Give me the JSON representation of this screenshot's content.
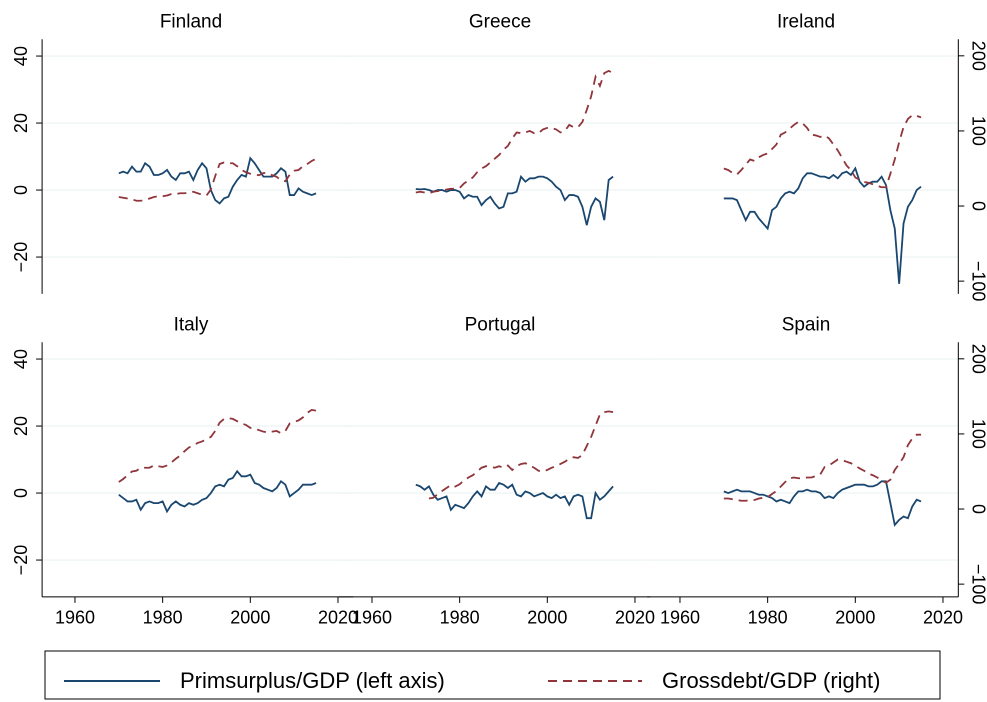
{
  "chart_data": [
    {
      "type": "line",
      "title": "Finland",
      "x": [
        1970,
        1971,
        1972,
        1973,
        1974,
        1975,
        1976,
        1977,
        1978,
        1979,
        1980,
        1981,
        1982,
        1983,
        1984,
        1985,
        1986,
        1987,
        1988,
        1989,
        1990,
        1991,
        1992,
        1993,
        1994,
        1995,
        1996,
        1997,
        1998,
        1999,
        2000,
        2001,
        2002,
        2003,
        2004,
        2005,
        2006,
        2007,
        2008,
        2009,
        2010,
        2011,
        2012,
        2013,
        2014,
        2015
      ],
      "xlim": [
        1952.5,
        2023.5
      ],
      "ylim": [
        -31,
        45
      ],
      "y2lim": [
        -117,
        222
      ],
      "yticks": [
        {
          "value": -20,
          "label": "−20"
        },
        0,
        20,
        40
      ],
      "grid": true,
      "series": [
        {
          "name": "Primsurplus/GDP (left axis)",
          "color": "#1a476f",
          "axis": "y",
          "dash": "solid",
          "values": [
            5,
            5.5,
            5,
            7,
            5.5,
            5.5,
            8,
            7,
            4.5,
            4.5,
            5,
            6,
            4,
            3,
            5,
            5,
            5.5,
            3,
            6,
            8,
            6.5,
            0,
            -3,
            -4,
            -2.5,
            -2,
            1,
            3,
            4.5,
            4,
            9.5,
            8,
            6,
            4,
            4,
            4,
            5,
            6.5,
            5.5,
            -1.5,
            -1.5,
            0.5,
            -0.5,
            -1,
            -1.5,
            -1
          ]
        },
        {
          "name": "Grossdebt/GDP (right)",
          "color": "#90353b",
          "axis": "y2",
          "dash": "dashed",
          "values": [
            12,
            11,
            10,
            9,
            7,
            7,
            8,
            10,
            12,
            13,
            13,
            14,
            16,
            16,
            17,
            17,
            18,
            19,
            17,
            15,
            14,
            22,
            40,
            56,
            58,
            57,
            57,
            53,
            48,
            45,
            43,
            42,
            41,
            44,
            44,
            41,
            39,
            34,
            33,
            42,
            47,
            48,
            53,
            56,
            60,
            63
          ]
        }
      ]
    },
    {
      "type": "line",
      "title": "Greece",
      "x": [
        1970,
        1971,
        1972,
        1973,
        1974,
        1975,
        1976,
        1977,
        1978,
        1979,
        1980,
        1981,
        1982,
        1983,
        1984,
        1985,
        1986,
        1987,
        1988,
        1989,
        1990,
        1991,
        1992,
        1993,
        1994,
        1995,
        1996,
        1997,
        1998,
        1999,
        2000,
        2001,
        2002,
        2003,
        2004,
        2005,
        2006,
        2007,
        2008,
        2009,
        2010,
        2011,
        2012,
        2013,
        2014,
        2015
      ],
      "xlim": [
        1952.5,
        2023.5
      ],
      "ylim": [
        -31,
        45
      ],
      "y2lim": [
        -117,
        222
      ],
      "yticks": [
        -20,
        0,
        20,
        40
      ],
      "grid": true,
      "series": [
        {
          "name": "Primsurplus/GDP (left axis)",
          "color": "#1a476f",
          "axis": "y",
          "dash": "solid",
          "values": [
            0.3,
            0.2,
            0.3,
            0,
            -0.5,
            0,
            0,
            -0.5,
            0,
            0,
            -0.5,
            -2.5,
            -1.5,
            -2,
            -2,
            -4.5,
            -3,
            -2,
            -4,
            -5.5,
            -5,
            -1,
            -1,
            -0.5,
            4,
            2.5,
            3.5,
            3.5,
            4,
            4,
            3.5,
            2.5,
            1,
            0,
            -3,
            -1.5,
            -1.5,
            -2,
            -5,
            -10.5,
            -5,
            -2.5,
            -3.5,
            -9,
            3,
            4
          ]
        },
        {
          "name": "Grossdebt/GDP (right)",
          "color": "#90353b",
          "axis": "y2",
          "dash": "dashed",
          "values": [
            18,
            19,
            18,
            17,
            19,
            20,
            20,
            22,
            23,
            23,
            24,
            30,
            34,
            38,
            45,
            50,
            53,
            58,
            63,
            68,
            75,
            80,
            90,
            98,
            97,
            98,
            100,
            97,
            97,
            102,
            104,
            104,
            102,
            98,
            100,
            108,
            105,
            105,
            112,
            128,
            146,
            172,
            160,
            177,
            180,
            177
          ]
        }
      ]
    },
    {
      "type": "line",
      "title": "Ireland",
      "x": [
        1970,
        1971,
        1972,
        1973,
        1974,
        1975,
        1976,
        1977,
        1978,
        1979,
        1980,
        1981,
        1982,
        1983,
        1984,
        1985,
        1986,
        1987,
        1988,
        1989,
        1990,
        1991,
        1992,
        1993,
        1994,
        1995,
        1996,
        1997,
        1998,
        1999,
        2000,
        2001,
        2002,
        2003,
        2004,
        2005,
        2006,
        2007,
        2008,
        2009,
        2010,
        2011,
        2012,
        2013,
        2014,
        2015
      ],
      "xlim": [
        1952.5,
        2023.5
      ],
      "ylim": [
        -31,
        45
      ],
      "y2lim": [
        -117,
        222
      ],
      "yticks": [
        -20,
        0,
        20,
        40
      ],
      "y2ticks": [
        {
          "value": -100,
          "label": "−100"
        },
        0,
        100,
        200
      ],
      "grid": true,
      "series": [
        {
          "name": "Primsurplus/GDP (left axis)",
          "color": "#1a476f",
          "axis": "y",
          "dash": "solid",
          "values": [
            -2.5,
            -2.5,
            -2.5,
            -3,
            -6,
            -9,
            -6.5,
            -6.5,
            -8.5,
            -10,
            -11.5,
            -6,
            -5,
            -2.5,
            -1,
            -0.5,
            -1,
            0.5,
            3.5,
            5,
            5,
            4.5,
            4,
            4,
            3.5,
            4.5,
            3.5,
            5,
            5.5,
            4.5,
            6.5,
            2.5,
            1,
            2,
            2.5,
            2.5,
            4,
            1.5,
            -6,
            -11.5,
            -28,
            -10,
            -5,
            -3,
            0,
            1
          ]
        },
        {
          "name": "Grossdebt/GDP (right)",
          "color": "#90353b",
          "axis": "y2",
          "dash": "dashed",
          "values": [
            50,
            48,
            44,
            42,
            48,
            55,
            62,
            60,
            65,
            68,
            70,
            76,
            82,
            95,
            98,
            103,
            108,
            112,
            110,
            104,
            95,
            94,
            92,
            94,
            90,
            82,
            74,
            64,
            54,
            48,
            38,
            35,
            32,
            31,
            29,
            27,
            25,
            25,
            43,
            62,
            85,
            105,
            116,
            121,
            120,
            118
          ]
        }
      ]
    },
    {
      "type": "line",
      "title": "Italy",
      "x": [
        1970,
        1971,
        1972,
        1973,
        1974,
        1975,
        1976,
        1977,
        1978,
        1979,
        1980,
        1981,
        1982,
        1983,
        1984,
        1985,
        1986,
        1987,
        1988,
        1989,
        1990,
        1991,
        1992,
        1993,
        1994,
        1995,
        1996,
        1997,
        1998,
        1999,
        2000,
        2001,
        2002,
        2003,
        2004,
        2005,
        2006,
        2007,
        2008,
        2009,
        2010,
        2011,
        2012,
        2013,
        2014,
        2015
      ],
      "xlim": [
        1952.5,
        2023.5
      ],
      "ylim": [
        -31,
        45
      ],
      "y2lim": [
        -117,
        222
      ],
      "yticks": [
        {
          "value": -20,
          "label": "−20"
        },
        0,
        20,
        40
      ],
      "xticks": [
        1960,
        1980,
        2000,
        2020
      ],
      "grid": true,
      "series": [
        {
          "name": "Primsurplus/GDP (left axis)",
          "color": "#1a476f",
          "axis": "y",
          "dash": "solid",
          "values": [
            -0.5,
            -1.5,
            -2.5,
            -2.5,
            -2,
            -5,
            -3,
            -2.5,
            -3,
            -3,
            -2.5,
            -5.5,
            -3.5,
            -2.5,
            -3.5,
            -4,
            -3,
            -3.5,
            -3,
            -2,
            -1.5,
            0,
            2,
            2.5,
            2,
            4,
            4.5,
            6.5,
            5,
            5,
            5.5,
            3,
            2.5,
            1.5,
            1,
            0.5,
            1.5,
            3.5,
            2.5,
            -1,
            0,
            1,
            2.5,
            2.5,
            2.5,
            3
          ]
        },
        {
          "name": "Grossdebt/GDP (right)",
          "color": "#90353b",
          "axis": "y2",
          "dash": "dashed",
          "values": [
            36,
            40,
            45,
            50,
            51,
            55,
            55,
            55,
            58,
            57,
            56,
            58,
            62,
            67,
            71,
            77,
            82,
            85,
            88,
            90,
            93,
            96,
            104,
            115,
            120,
            121,
            120,
            117,
            114,
            112,
            108,
            107,
            105,
            103,
            102,
            103,
            104,
            101,
            104,
            114,
            116,
            118,
            122,
            128,
            132,
            131
          ]
        }
      ]
    },
    {
      "type": "line",
      "title": "Portugal",
      "x": [
        1970,
        1971,
        1972,
        1973,
        1974,
        1975,
        1976,
        1977,
        1978,
        1979,
        1980,
        1981,
        1982,
        1983,
        1984,
        1985,
        1986,
        1987,
        1988,
        1989,
        1990,
        1991,
        1992,
        1993,
        1994,
        1995,
        1996,
        1997,
        1998,
        1999,
        2000,
        2001,
        2002,
        2003,
        2004,
        2005,
        2006,
        2007,
        2008,
        2009,
        2010,
        2011,
        2012,
        2013,
        2014,
        2015
      ],
      "xlim": [
        1952.5,
        2023.5
      ],
      "ylim": [
        -31,
        45
      ],
      "y2lim": [
        -117,
        222
      ],
      "yticks": [
        -20,
        0,
        20,
        40
      ],
      "xticks": [
        1960,
        1980,
        2000,
        2020
      ],
      "grid": true,
      "series": [
        {
          "name": "Primsurplus/GDP (left axis)",
          "color": "#1a476f",
          "axis": "y",
          "dash": "solid",
          "values": [
            2.5,
            2,
            1,
            2,
            -0.5,
            -2,
            -1.5,
            -1,
            -5,
            -3.5,
            -4,
            -4.5,
            -3,
            -1,
            0.5,
            -1,
            2,
            1,
            1,
            3,
            2.5,
            1.5,
            2.5,
            -0.5,
            -1,
            0.5,
            0,
            -1,
            -0.5,
            0,
            -1,
            -1.5,
            -0.5,
            -1.5,
            -1,
            -3.5,
            -1,
            -0.5,
            -1,
            -7.5,
            -7.5,
            0,
            -2,
            -1,
            0.5,
            2
          ]
        },
        {
          "name": "Grossdebt/GDP (right)",
          "color": "#90353b",
          "axis": "y2",
          "dash": "dashed",
          "values": [
            null,
            null,
            null,
            14,
            15,
            20,
            24,
            28,
            32,
            30,
            33,
            38,
            42,
            45,
            50,
            55,
            57,
            56,
            55,
            57,
            55,
            58,
            52,
            57,
            60,
            61,
            58,
            55,
            51,
            50,
            52,
            55,
            57,
            60,
            63,
            67,
            69,
            68,
            72,
            84,
            96,
            111,
            126,
            129,
            130,
            129
          ]
        }
      ]
    },
    {
      "type": "line",
      "title": "Spain",
      "x": [
        1970,
        1971,
        1972,
        1973,
        1974,
        1975,
        1976,
        1977,
        1978,
        1979,
        1980,
        1981,
        1982,
        1983,
        1984,
        1985,
        1986,
        1987,
        1988,
        1989,
        1990,
        1991,
        1992,
        1993,
        1994,
        1995,
        1996,
        1997,
        1998,
        1999,
        2000,
        2001,
        2002,
        2003,
        2004,
        2005,
        2006,
        2007,
        2008,
        2009,
        2010,
        2011,
        2012,
        2013,
        2014,
        2015
      ],
      "xlim": [
        1952.5,
        2023.5
      ],
      "ylim": [
        -31,
        45
      ],
      "y2lim": [
        -117,
        222
      ],
      "yticks": [
        -20,
        0,
        20,
        40
      ],
      "y2ticks": [
        {
          "value": -100,
          "label": "−100"
        },
        0,
        100,
        200
      ],
      "xticks": [
        1960,
        1980,
        2000,
        2020
      ],
      "grid": true,
      "series": [
        {
          "name": "Primsurplus/GDP (left axis)",
          "color": "#1a476f",
          "axis": "y",
          "dash": "solid",
          "values": [
            0.5,
            0,
            0.5,
            1,
            0.5,
            0.5,
            0.5,
            0,
            -0.5,
            -0.5,
            -1,
            -1.5,
            -2.5,
            -2,
            -2.5,
            -3,
            -1,
            0.5,
            0.5,
            1,
            0.5,
            0.5,
            0,
            -1.5,
            -1,
            -1.5,
            0,
            1,
            1.5,
            2,
            2.5,
            2.5,
            2.5,
            2,
            2,
            2.5,
            3.5,
            3.5,
            -3,
            -9.5,
            -8,
            -7,
            -7.5,
            -4,
            -2,
            -2.5
          ]
        },
        {
          "name": "Grossdebt/GDP (right)",
          "color": "#90353b",
          "axis": "y2",
          "dash": "dashed",
          "values": [
            14,
            14,
            13,
            12,
            11,
            11,
            12,
            12,
            14,
            15,
            16,
            20,
            24,
            30,
            36,
            41,
            42,
            41,
            41,
            42,
            42,
            44,
            46,
            56,
            58,
            62,
            66,
            65,
            63,
            61,
            58,
            54,
            51,
            47,
            45,
            42,
            38,
            35,
            39,
            52,
            60,
            69,
            85,
            94,
            99,
            99
          ]
        }
      ]
    }
  ]
}
